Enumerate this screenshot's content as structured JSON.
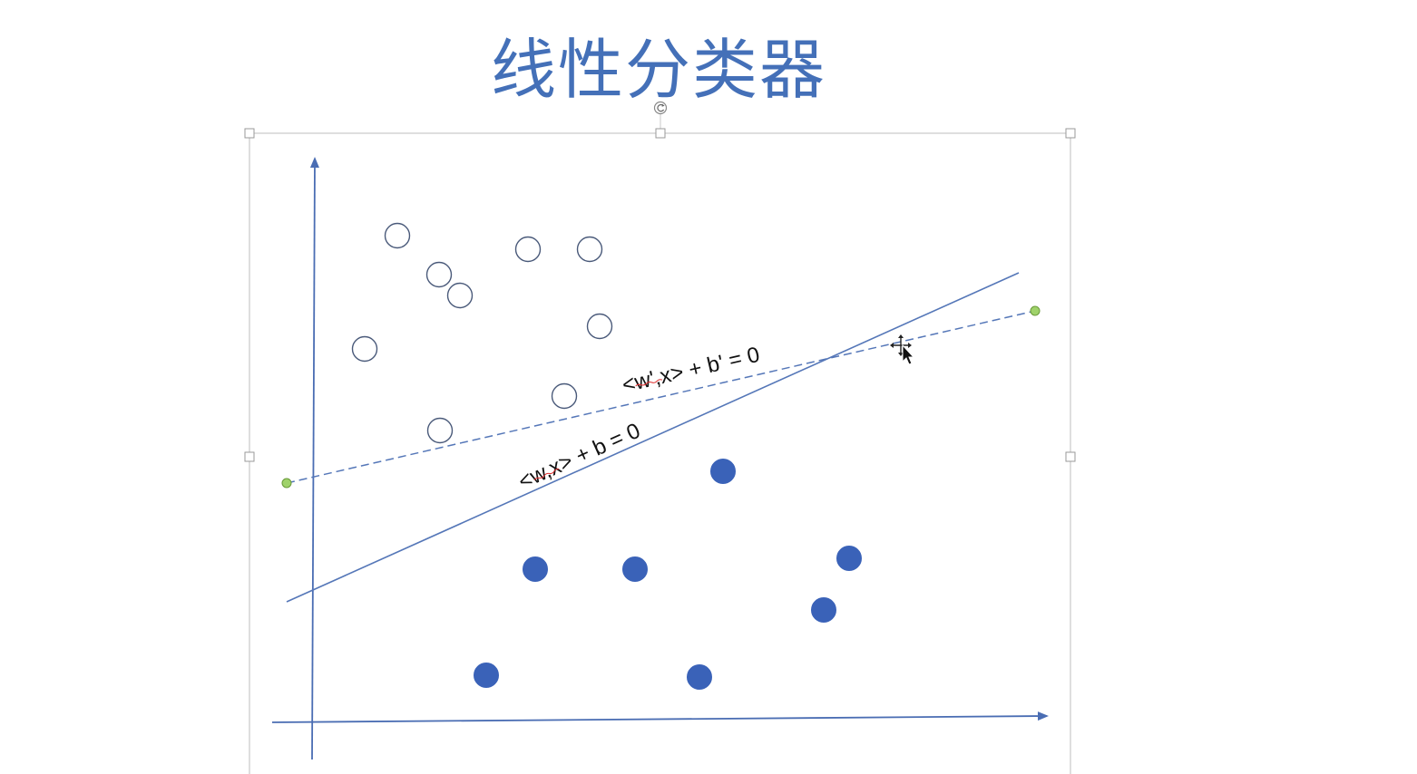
{
  "slide": {
    "title": "线性分类器"
  },
  "equations": {
    "solid_line": "<w,x> + b = 0",
    "dashed_line": "<w',x> + b' = 0"
  },
  "icons": {
    "rotate_handle": "rotate-icon",
    "move_cursor": "move-cursor-icon"
  },
  "colors": {
    "title": "#4470b8",
    "axis": "#4a6db3",
    "filled_point": "#3a62b8",
    "hollow_point_stroke": "#4a5a7a",
    "handle_endpoint": "#9fd26a"
  }
}
